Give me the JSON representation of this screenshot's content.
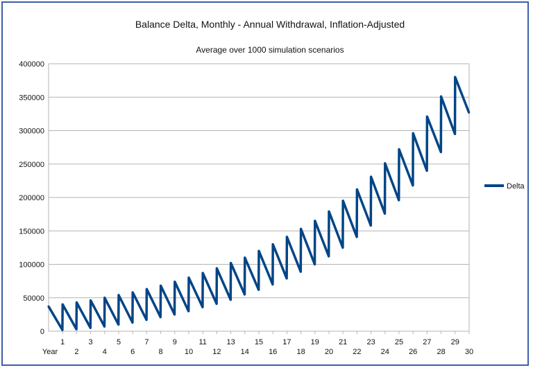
{
  "chart_data": {
    "type": "line",
    "title": "Balance Delta, Monthly - Annual Withdrawal, Inflation-Adjusted",
    "subtitle": "Average over 1000 simulation scenarios",
    "xlabel": "Year",
    "ylabel": "",
    "ylim": [
      0,
      400000
    ],
    "yticks": [
      0,
      50000,
      100000,
      150000,
      200000,
      250000,
      300000,
      350000,
      400000
    ],
    "ytick_labels": [
      "0",
      "50000",
      "100000",
      "150000",
      "200000",
      "250000",
      "300000",
      "350000",
      "400000"
    ],
    "xlim": [
      0,
      30
    ],
    "xticks": [
      1,
      2,
      3,
      4,
      5,
      6,
      7,
      8,
      9,
      10,
      11,
      12,
      13,
      14,
      15,
      16,
      17,
      18,
      19,
      20,
      21,
      22,
      23,
      24,
      25,
      26,
      27,
      28,
      29,
      30
    ],
    "xtick_labels": [
      "1",
      "2",
      "3",
      "4",
      "5",
      "6",
      "7",
      "8",
      "9",
      "10",
      "11",
      "12",
      "13",
      "14",
      "15",
      "16",
      "17",
      "18",
      "19",
      "20",
      "21",
      "22",
      "23",
      "24",
      "25",
      "26",
      "27",
      "28",
      "29",
      "30"
    ],
    "grid": "horizontal",
    "legend_position": "right",
    "series": [
      {
        "name": "Delta",
        "color": "#004586",
        "year_start_peaks": [
          37000,
          40000,
          43000,
          46000,
          50000,
          54000,
          58000,
          63000,
          68000,
          74000,
          80000,
          87000,
          94000,
          102000,
          110000,
          120000,
          130000,
          141000,
          153000,
          165000,
          179000,
          195000,
          212000,
          231000,
          251000,
          272000,
          296000,
          321000,
          351000,
          380000
        ],
        "year_end_lows": [
          2000,
          3000,
          5000,
          7000,
          10000,
          13000,
          17000,
          21000,
          25000,
          30000,
          36000,
          41000,
          47000,
          55000,
          62000,
          70000,
          79000,
          89000,
          100000,
          112000,
          125000,
          141000,
          158000,
          176000,
          196000,
          218000,
          240000,
          268000,
          295000,
          327000
        ]
      }
    ]
  }
}
